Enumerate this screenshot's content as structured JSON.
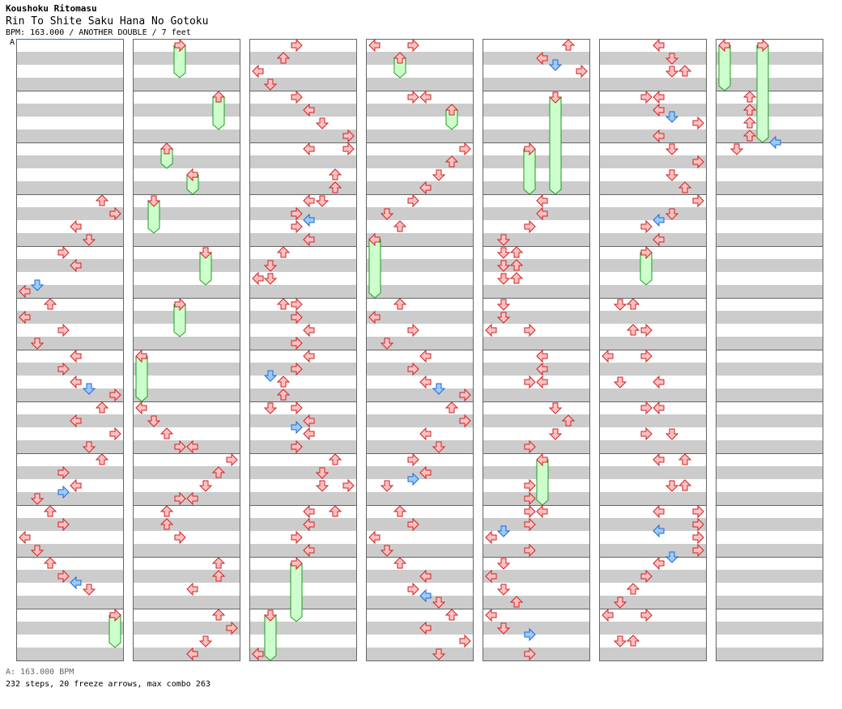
{
  "artist": "Koushoku Ritomasu",
  "title": "Rin To Shite Saku Hana No Gotoku",
  "info": "BPM: 163.000 / ANOTHER DOUBLE / 7 feet",
  "bpm_marker": "A",
  "bpm_legend": "A: 163.000 BPM",
  "stats": "232 steps, 20 freeze arrows, max combo 263",
  "colors": {
    "note_fill": "#ffc0c0",
    "note_stroke": "#cc2222",
    "blue_fill": "#99ccff",
    "blue_stroke": "#2266cc",
    "freeze_fill": "#ccffcc",
    "freeze_stroke": "#229922",
    "stripe": "#cccccc",
    "border": "#666666"
  },
  "chart_data": {
    "type": "step-chart",
    "columns": 7,
    "measures_per_column": 12,
    "lanes": 8,
    "freeze_count": 20
  }
}
